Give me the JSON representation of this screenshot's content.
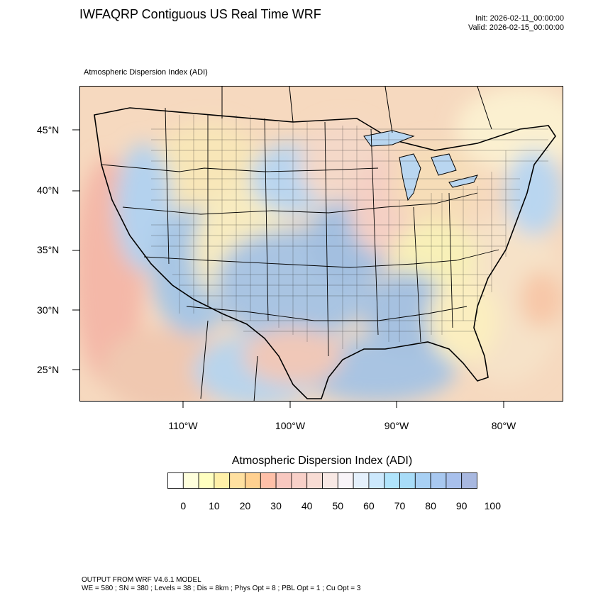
{
  "header": {
    "title": "IWFAQRP Contiguous US Real Time WRF",
    "init": "Init: 2026-02-11_00:00:00",
    "valid": "Valid: 2026-02-15_00:00:00"
  },
  "map": {
    "field_label": "Atmospheric Dispersion Index   (ADI)",
    "lat_labels": [
      "45°N",
      "40°N",
      "35°N",
      "30°N",
      "25°N"
    ],
    "lon_labels": [
      "110°W",
      "100°W",
      "90°W",
      "80°W"
    ]
  },
  "colorbar": {
    "title": "Atmospheric Dispersion Index  (ADI)",
    "colors": [
      "#ffffff",
      "#ffffdc",
      "#ffffc0",
      "#fff0a8",
      "#ffe0a0",
      "#ffd090",
      "#ffc0a8",
      "#f8c8c0",
      "#f8d0c8",
      "#f8dcd4",
      "#f8e8e4",
      "#f8f4f8",
      "#e4f0fc",
      "#cce8fc",
      "#b0e4fc",
      "#a8dcf8",
      "#a8d0f4",
      "#a8c8f0",
      "#a8c0ec",
      "#a8b8e0"
    ],
    "ticks": [
      "0",
      "10",
      "20",
      "30",
      "40",
      "50",
      "60",
      "70",
      "80",
      "90",
      "100"
    ]
  },
  "footer": {
    "line1": "OUTPUT FROM WRF V4.6.1 MODEL",
    "line2": "WE = 580 ; SN = 380 ; Levels = 38 ; Dis = 8km ; Phys Opt = 8 ; PBL Opt = 1 ; Cu Opt = 3"
  }
}
